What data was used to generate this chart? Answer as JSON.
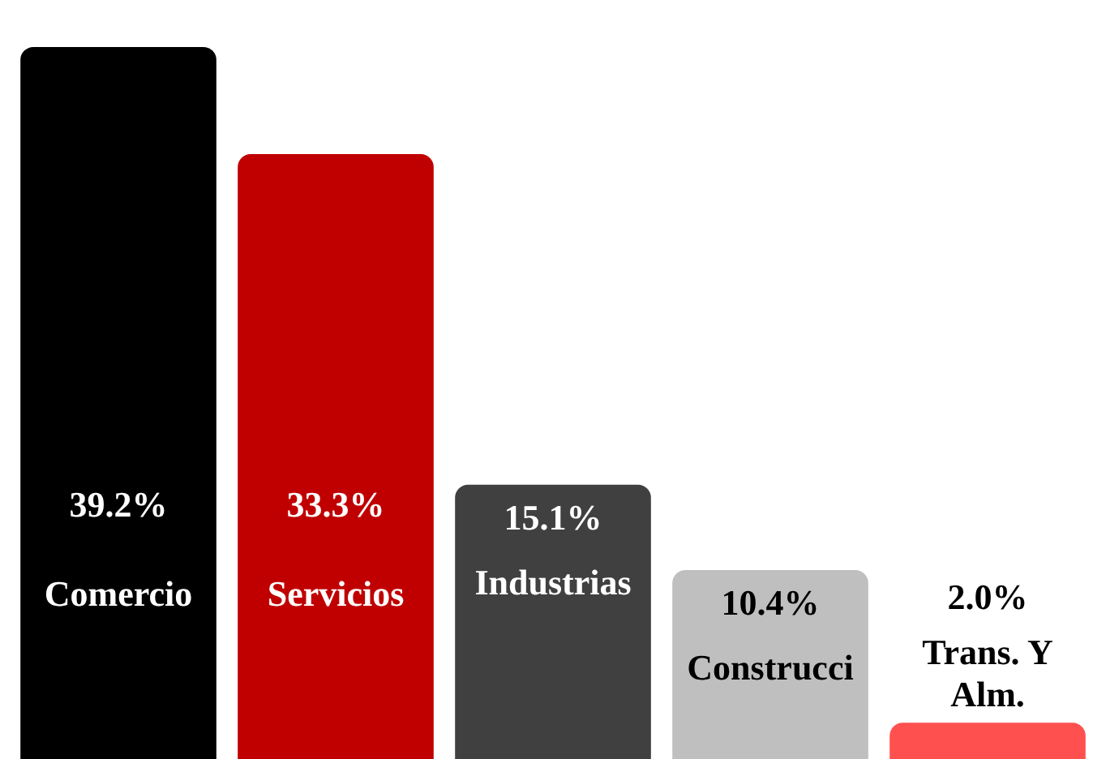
{
  "chart_data": {
    "type": "bar",
    "categories": [
      "Comercio",
      "Servicios",
      "Industrias",
      "Construcci",
      "Trans. Y Alm."
    ],
    "values": [
      39.2,
      33.3,
      15.1,
      10.4,
      2.0
    ],
    "colors": [
      "#000000",
      "#c00000",
      "#404040",
      "#bfbfbf",
      "#ff5050"
    ],
    "value_labels": [
      "39.2%",
      "33.3%",
      "15.1%",
      "10.4%",
      "2.0%"
    ]
  }
}
